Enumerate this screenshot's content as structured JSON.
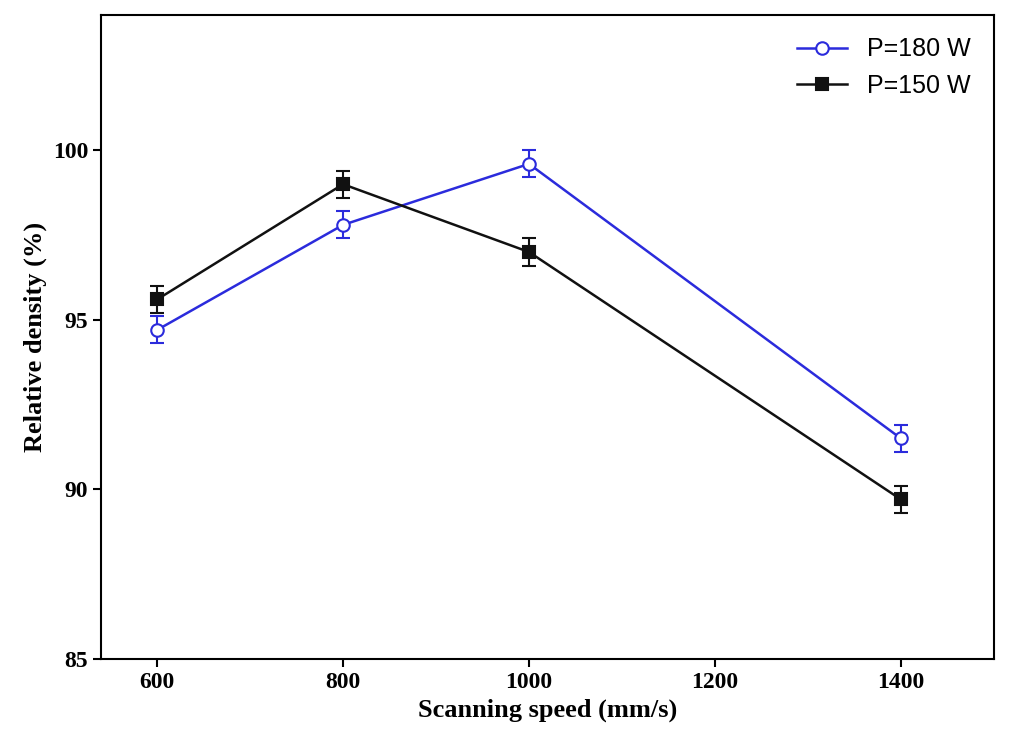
{
  "chart_data": {
    "type": "line",
    "x_label": "Scanning speed (mm/s)",
    "y_label": "Relative density (%)",
    "x": [
      600,
      800,
      1000,
      1400
    ],
    "series": [
      {
        "name": "P=180 W",
        "color": "#2b2bdc",
        "marker": "open_circle",
        "line_style": "solid",
        "values": [
          94.7,
          97.8,
          99.6,
          91.5
        ],
        "errors": [
          0.4,
          0.4,
          0.4,
          0.4
        ]
      },
      {
        "name": "P=150 W",
        "color": "#111111",
        "marker": "square",
        "line_style": "solid",
        "values": [
          95.6,
          99.0,
          97.0,
          89.7
        ],
        "errors": [
          0.4,
          0.4,
          0.4,
          0.4
        ]
      }
    ],
    "xlim": [
      540,
      1500
    ],
    "xticks": [
      600,
      800,
      1000,
      1200,
      1400
    ],
    "ylim": [
      85,
      104
    ],
    "yticks": [
      85,
      90,
      95,
      100
    ],
    "grid": false,
    "legend": "upper right"
  }
}
